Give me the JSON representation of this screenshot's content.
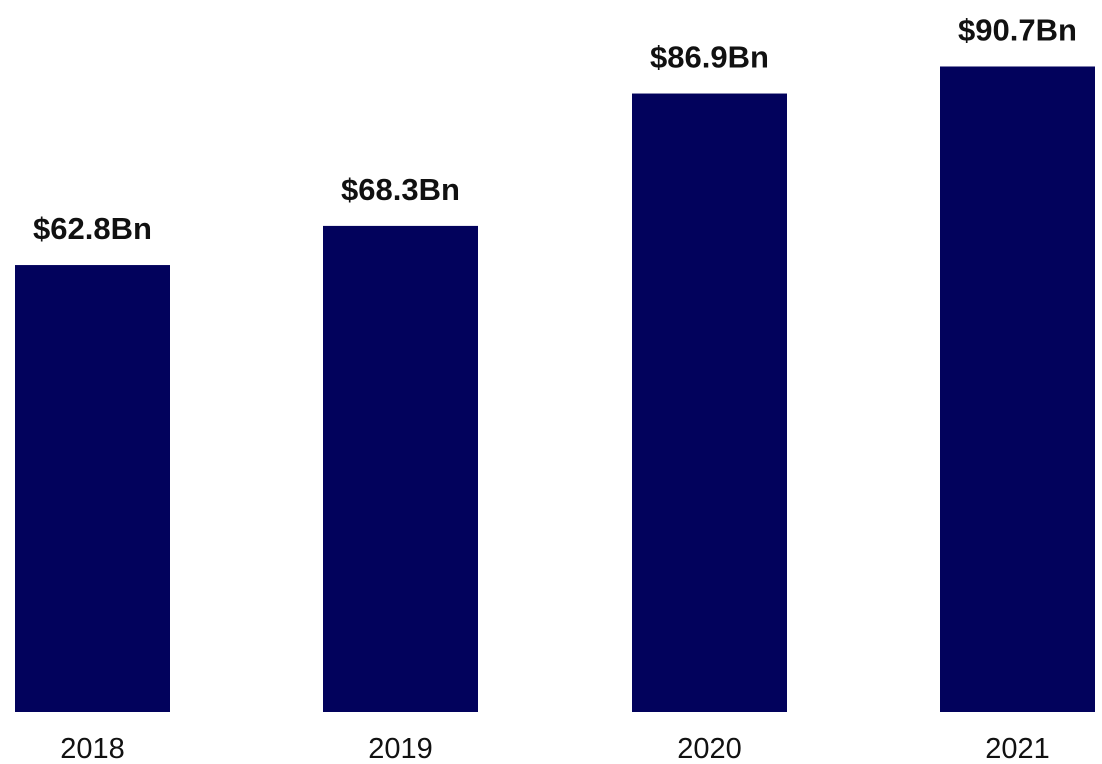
{
  "chart_data": {
    "type": "bar",
    "categories": [
      "2018",
      "2019",
      "2020",
      "2021"
    ],
    "values": [
      62.8,
      68.3,
      86.9,
      90.7
    ],
    "data_labels": [
      "$62.8Bn",
      "$68.3Bn",
      "$86.9Bn",
      "$90.7Bn"
    ],
    "title": "",
    "xlabel": "",
    "ylabel": "",
    "ylim": [
      0,
      100
    ],
    "grid": false,
    "legend": "none",
    "colors": {
      "bar": "#02025c",
      "text": "#111111",
      "background": "#ffffff"
    }
  }
}
